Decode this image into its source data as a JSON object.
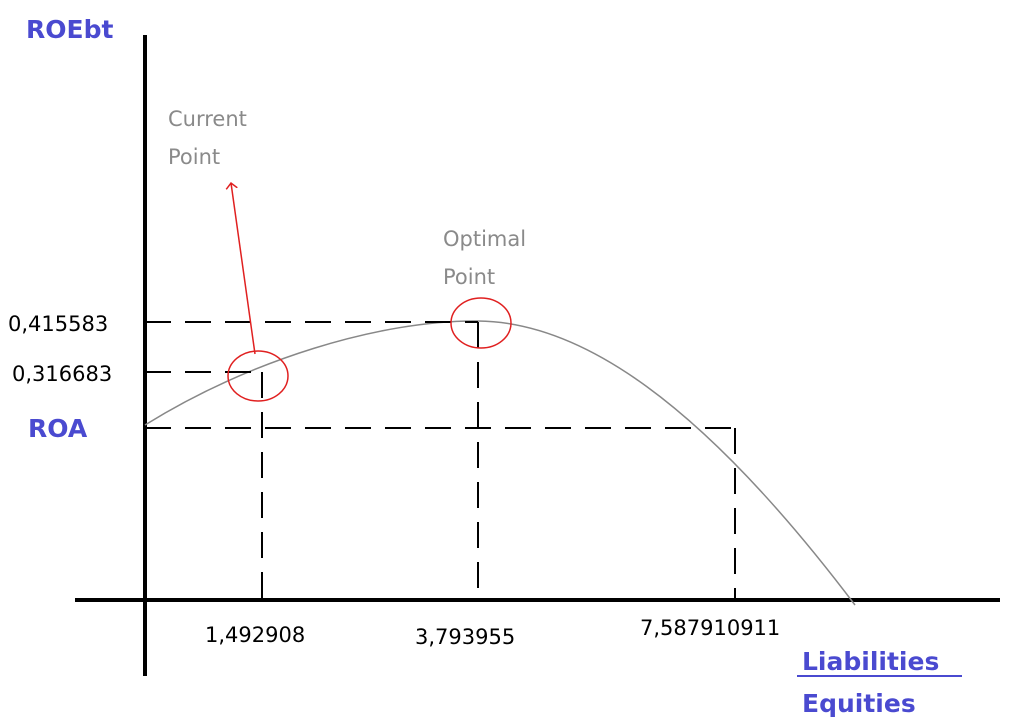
{
  "y_axis_label": "ROEbt",
  "roa_label": "ROA",
  "x_axis_label": {
    "numerator": "Liabilities",
    "denominator": "Equities"
  },
  "y_labels": [
    "0,415583",
    "0,316683"
  ],
  "x_labels": [
    "1,492908",
    "3,793955",
    "7,587910911"
  ],
  "annotations": {
    "current": [
      "Current",
      "Point"
    ],
    "optimal": [
      "Optimal",
      "Point"
    ]
  }
}
